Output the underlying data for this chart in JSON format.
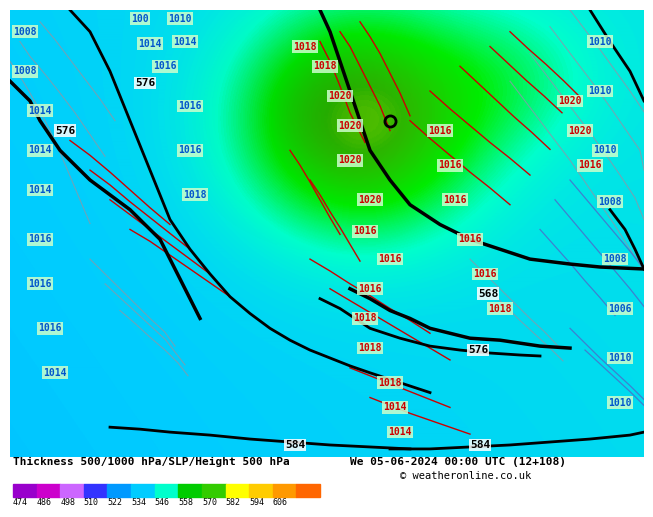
{
  "title_left": "Thickness 500/1000 hPa/SLP/Height 500 hPa",
  "title_right": "We 05-06-2024 00:00 UTC (12+108)",
  "copyright": "© weatheronline.co.uk",
  "colorbar_values": [
    474,
    486,
    498,
    510,
    522,
    534,
    546,
    558,
    570,
    582,
    594,
    606
  ],
  "colorbar_colors": [
    "#9900cc",
    "#cc00cc",
    "#cc66ff",
    "#3333ff",
    "#0099ff",
    "#00ccff",
    "#00ffcc",
    "#00cc00",
    "#33cc00",
    "#ffff00",
    "#ffcc00",
    "#ff9900",
    "#ff6600"
  ],
  "bg_color": "#ffffff",
  "fig_width": 6.34,
  "fig_height": 4.9,
  "yellow_light": "#ffe000",
  "yellow_mid": "#ffc800",
  "yellow_dark": "#e8a000",
  "green_bright": "#00dd00",
  "green_dark": "#009900",
  "green_mid": "#55cc00",
  "blue_label": "#0055cc",
  "slp_label_bg": "#ccffcc",
  "slp_red": "#cc0000"
}
